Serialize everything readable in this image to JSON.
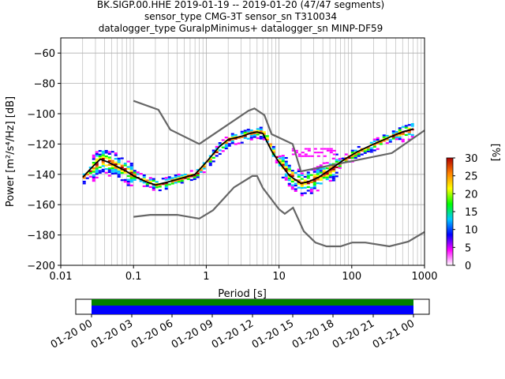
{
  "title_lines": [
    "BK.SIGP.00.HHE   2019-01-19 -- 2019-01-20  (47/47 segments)",
    "sensor_type CMG-3T sensor_sn T310034",
    "datalogger_type GuralpMinimus+ datalogger_sn MINP-DF59"
  ],
  "chart_data": {
    "type": "heatmap",
    "xlabel": "Period [s]",
    "ylabel": "Power [m²/s⁴/Hz] [dB]",
    "xscale": "log",
    "xlim": [
      0.01,
      1000
    ],
    "ylim": [
      -200,
      -50
    ],
    "grid": true,
    "x_ticks": [
      {
        "v": 0.01,
        "label": "0.01"
      },
      {
        "v": 0.1,
        "label": "0.1"
      },
      {
        "v": 1,
        "label": "1"
      },
      {
        "v": 10,
        "label": "10"
      },
      {
        "v": 100,
        "label": "100"
      },
      {
        "v": 1000,
        "label": "1000"
      }
    ],
    "y_ticks": [
      -60,
      -80,
      -100,
      -120,
      -140,
      -160,
      -180,
      -200
    ],
    "nhnm": [
      [
        0.1,
        -91.5
      ],
      [
        0.22,
        -97.4
      ],
      [
        0.32,
        -110.5
      ],
      [
        0.8,
        -120.0
      ],
      [
        3.8,
        -98.0
      ],
      [
        4.6,
        -96.5
      ],
      [
        6.3,
        -101.0
      ],
      [
        7.9,
        -113.5
      ],
      [
        15.4,
        -120.0
      ],
      [
        20,
        -138.0
      ],
      [
        354.8,
        -126.0
      ],
      [
        1000,
        -111.0
      ]
    ],
    "nlnm": [
      [
        0.1,
        -168.0
      ],
      [
        0.17,
        -166.7
      ],
      [
        0.4,
        -166.7
      ],
      [
        0.8,
        -169.2
      ],
      [
        1.24,
        -163.7
      ],
      [
        2.4,
        -148.6
      ],
      [
        4.3,
        -141.1
      ],
      [
        5.0,
        -141.1
      ],
      [
        6.0,
        -149.0
      ],
      [
        10.0,
        -163.0
      ],
      [
        12.0,
        -166.0
      ],
      [
        15.6,
        -162.0
      ],
      [
        21.9,
        -177.5
      ],
      [
        31.6,
        -185.0
      ],
      [
        45,
        -187.5
      ],
      [
        70,
        -187.5
      ],
      [
        101,
        -185.0
      ],
      [
        154,
        -185.0
      ],
      [
        328,
        -187.5
      ],
      [
        600,
        -184.4
      ],
      [
        1000,
        -178.0
      ]
    ],
    "mode_curve": [
      [
        0.02,
        -142
      ],
      [
        0.025,
        -137
      ],
      [
        0.03,
        -133
      ],
      [
        0.035,
        -130
      ],
      [
        0.045,
        -132
      ],
      [
        0.06,
        -135
      ],
      [
        0.08,
        -138
      ],
      [
        0.1,
        -141
      ],
      [
        0.15,
        -145
      ],
      [
        0.2,
        -147
      ],
      [
        0.3,
        -145
      ],
      [
        0.5,
        -142
      ],
      [
        0.7,
        -140
      ],
      [
        1.0,
        -132
      ],
      [
        1.5,
        -122
      ],
      [
        2.0,
        -117
      ],
      [
        3.0,
        -115
      ],
      [
        4.0,
        -113
      ],
      [
        5.0,
        -112
      ],
      [
        6.0,
        -113
      ],
      [
        8.0,
        -125
      ],
      [
        10.0,
        -132
      ],
      [
        14.0,
        -141
      ],
      [
        20.0,
        -146
      ],
      [
        25.0,
        -145
      ],
      [
        35.0,
        -142
      ],
      [
        50.0,
        -137
      ],
      [
        80.0,
        -130
      ],
      [
        120,
        -125
      ],
      [
        200,
        -120
      ],
      [
        350,
        -115
      ],
      [
        500,
        -112
      ],
      [
        700,
        -110
      ]
    ],
    "colorbar": {
      "label": "[%]",
      "min": 0,
      "max": 30,
      "ticks": [
        0,
        5,
        10,
        15,
        20,
        25,
        30
      ],
      "colors": [
        "#ffffff",
        "#ff00ff",
        "#0000ff",
        "#00c8ff",
        "#00ff00",
        "#ffff00",
        "#ff8000",
        "#b00000"
      ]
    }
  },
  "timeline": {
    "ticks": [
      "01-20 00",
      "01-20 03",
      "01-20 06",
      "01-20 09",
      "01-20 12",
      "01-20 15",
      "01-20 18",
      "01-20 21",
      "01-21 00"
    ],
    "data_colors": [
      "#008000",
      "#0000ff"
    ]
  }
}
